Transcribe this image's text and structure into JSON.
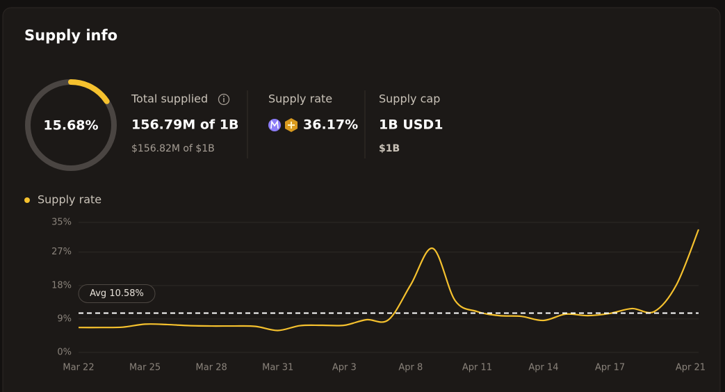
{
  "title": "Supply info",
  "utilization": {
    "value": 15.68,
    "label": "15.68%"
  },
  "stats": [
    {
      "label": "Total supplied",
      "value": "156.79M of 1B",
      "subvalue": "$156.82M of $1B"
    },
    {
      "label": "Supply rate",
      "value": "36.17%"
    },
    {
      "label": "Supply cap",
      "value": "1B USD1",
      "subvalue": "$1B"
    }
  ],
  "chart_data": {
    "type": "line",
    "categories": [
      "Mar 22",
      null,
      null,
      "Mar 25",
      null,
      null,
      "Mar 28",
      null,
      null,
      "Mar 31",
      null,
      null,
      "Apr 3",
      null,
      null,
      "Apr 8",
      null,
      null,
      "Apr 11",
      null,
      null,
      "Apr 14",
      null,
      null,
      "Apr 17",
      null,
      null,
      null,
      "Apr 21"
    ],
    "series": [
      {
        "name": "Supply rate",
        "color": "#f5c12e",
        "values": [
          6.7,
          6.7,
          6.8,
          7.6,
          7.5,
          7.2,
          7.1,
          7.1,
          7.0,
          5.9,
          7.2,
          7.3,
          7.3,
          8.8,
          8.8,
          18.2,
          28,
          14,
          11,
          9.9,
          9.7,
          8.6,
          10.3,
          9.9,
          10.5,
          11.8,
          11,
          18.2,
          33.1
        ]
      }
    ],
    "ylim": [
      0,
      35
    ],
    "yticks": [
      {
        "value": 0,
        "label": "0%"
      },
      {
        "value": 9,
        "label": "9%"
      },
      {
        "value": 18,
        "label": "18%"
      },
      {
        "value": 27,
        "label": "27%"
      },
      {
        "value": 35,
        "label": "35%"
      }
    ],
    "average": {
      "value": 10.58,
      "label": "Avg 10.58%"
    },
    "grid": true
  }
}
